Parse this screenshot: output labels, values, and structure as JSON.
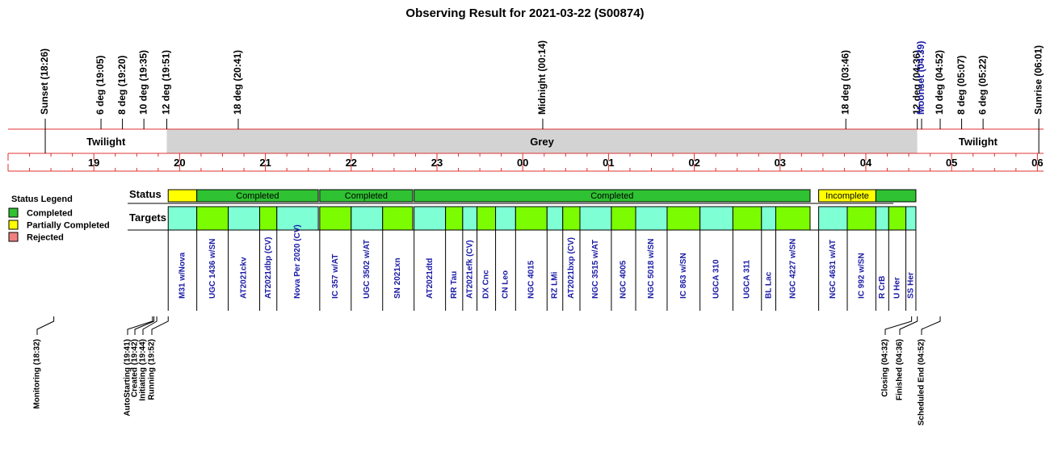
{
  "title": "Observing Result for 2021-03-22 (S00874)",
  "chart_data": {
    "type": "timeline",
    "time_axis": {
      "start": "18:00",
      "end": "06:10",
      "hour_labels": [
        "19",
        "20",
        "21",
        "22",
        "23",
        "00",
        "01",
        "02",
        "03",
        "04",
        "05",
        "06"
      ]
    },
    "top_events": [
      {
        "label": "Sunset (18:26)",
        "time": "18:26",
        "color": "#000000"
      },
      {
        "label": "6 deg (19:05)",
        "time": "19:05",
        "color": "#000000"
      },
      {
        "label": "8 deg (19:20)",
        "time": "19:20",
        "color": "#000000"
      },
      {
        "label": "10 deg (19:35)",
        "time": "19:35",
        "color": "#000000"
      },
      {
        "label": "12 deg (19:51)",
        "time": "19:51",
        "color": "#000000"
      },
      {
        "label": "18 deg (20:41)",
        "time": "20:41",
        "color": "#000000"
      },
      {
        "label": "Midnight (00:14)",
        "time": "00:14",
        "color": "#000000"
      },
      {
        "label": "18 deg (03:46)",
        "time": "03:46",
        "color": "#000000"
      },
      {
        "label": "12 deg (04:36)",
        "time": "04:36",
        "color": "#000000"
      },
      {
        "label": "Moonset (04:39)",
        "time": "04:39",
        "color": "#1a1aa6"
      },
      {
        "label": "10 deg (04:52)",
        "time": "04:52",
        "color": "#000000"
      },
      {
        "label": "8 deg (05:07)",
        "time": "05:07",
        "color": "#000000"
      },
      {
        "label": "6 deg (05:22)",
        "time": "05:22",
        "color": "#000000"
      },
      {
        "label": "Sunrise (06:01)",
        "time": "06:01",
        "color": "#000000"
      }
    ],
    "sky_bands": [
      {
        "label": "Twilight",
        "start": "18:26",
        "end": "19:51",
        "color": "#ffffff"
      },
      {
        "label": "Grey",
        "start": "19:51",
        "end": "04:36",
        "color": "#d3d3d3"
      },
      {
        "label": "Twilight",
        "start": "04:36",
        "end": "06:01",
        "color": "#ffffff"
      }
    ],
    "status_legend": {
      "title": "Status Legend",
      "items": [
        {
          "label": "Completed",
          "color": "#2fc232"
        },
        {
          "label": "Partially Completed",
          "color": "#ffff00"
        },
        {
          "label": "Rejected",
          "color": "#f08080"
        }
      ]
    },
    "row_labels": {
      "status": "Status",
      "targets": "Targets"
    },
    "status_blocks": [
      {
        "label": "",
        "start": "19:52",
        "end": "20:12",
        "color": "#ffff00"
      },
      {
        "label": "Completed",
        "start": "20:12",
        "end": "21:37",
        "color": "#2fc232"
      },
      {
        "label": "Completed",
        "start": "21:38",
        "end": "22:43",
        "color": "#2fc232"
      },
      {
        "label": "Completed",
        "start": "22:44",
        "end": "03:21",
        "color": "#2fc232"
      },
      {
        "label": "Incomplete",
        "start": "03:27",
        "end": "04:07",
        "color": "#ffff00"
      },
      {
        "label": "",
        "start": "04:07",
        "end": "04:35",
        "color": "#2fc232"
      }
    ],
    "targets": [
      {
        "name": "M31 w/Nova",
        "start": "19:52",
        "end": "20:12",
        "color": "#7fffd4"
      },
      {
        "name": "UGC 1436 w/SN",
        "start": "20:12",
        "end": "20:34",
        "color": "#7cfc00"
      },
      {
        "name": "AT2021ckv",
        "start": "20:34",
        "end": "20:56",
        "color": "#7fffd4"
      },
      {
        "name": "AT2021dbp (CV)",
        "start": "20:56",
        "end": "21:08",
        "color": "#7cfc00"
      },
      {
        "name": "Nova Per 2020 (CV)",
        "start": "21:08",
        "end": "21:37",
        "color": "#7fffd4"
      },
      {
        "name": "IC 357 w/AT",
        "start": "21:38",
        "end": "22:00",
        "color": "#7cfc00"
      },
      {
        "name": "UGC 3502 w/AT",
        "start": "22:00",
        "end": "22:22",
        "color": "#7fffd4"
      },
      {
        "name": "SN 2021xn",
        "start": "22:22",
        "end": "22:43",
        "color": "#7cfc00"
      },
      {
        "name": "AT2021dtd",
        "start": "22:44",
        "end": "23:06",
        "color": "#7fffd4"
      },
      {
        "name": "RR Tau",
        "start": "23:06",
        "end": "23:18",
        "color": "#7cfc00"
      },
      {
        "name": "AT2021efk (CV)",
        "start": "23:18",
        "end": "23:28",
        "color": "#7fffd4"
      },
      {
        "name": "DX Cnc",
        "start": "23:28",
        "end": "23:41",
        "color": "#7cfc00"
      },
      {
        "name": "CN Leo",
        "start": "23:41",
        "end": "23:55",
        "color": "#7fffd4"
      },
      {
        "name": "NGC 4015",
        "start": "23:55",
        "end": "00:17",
        "color": "#7cfc00"
      },
      {
        "name": "RZ LMi",
        "start": "00:17",
        "end": "00:28",
        "color": "#7fffd4"
      },
      {
        "name": "AT2021bxp (CV)",
        "start": "00:28",
        "end": "00:40",
        "color": "#7cfc00"
      },
      {
        "name": "NGC 3515 w/AT",
        "start": "00:40",
        "end": "01:02",
        "color": "#7fffd4"
      },
      {
        "name": "NGC 4005",
        "start": "01:02",
        "end": "01:19",
        "color": "#7cfc00"
      },
      {
        "name": "NGC 5018 w/SN",
        "start": "01:19",
        "end": "01:41",
        "color": "#7fffd4"
      },
      {
        "name": "IC 863 w/SN",
        "start": "01:41",
        "end": "02:04",
        "color": "#7cfc00"
      },
      {
        "name": "UGCA 310",
        "start": "02:04",
        "end": "02:27",
        "color": "#7fffd4"
      },
      {
        "name": "UGCA 311",
        "start": "02:27",
        "end": "02:47",
        "color": "#7cfc00"
      },
      {
        "name": "BL Lac",
        "start": "02:47",
        "end": "02:57",
        "color": "#7fffd4"
      },
      {
        "name": "NGC 4227 w/SN",
        "start": "02:57",
        "end": "03:21",
        "color": "#7cfc00"
      },
      {
        "name": "NGC 4631 w/AT",
        "start": "03:27",
        "end": "03:47",
        "color": "#7fffd4"
      },
      {
        "name": "IC 992 w/SN",
        "start": "03:47",
        "end": "04:07",
        "color": "#7cfc00"
      },
      {
        "name": "R CrB",
        "start": "04:07",
        "end": "04:16",
        "color": "#7fffd4"
      },
      {
        "name": "U Her",
        "start": "04:16",
        "end": "04:28",
        "color": "#7cfc00"
      },
      {
        "name": "SS Her",
        "start": "04:28",
        "end": "04:35",
        "color": "#7fffd4"
      }
    ],
    "bottom_events": [
      {
        "label": "Monitoring (18:32)",
        "time": "18:32"
      },
      {
        "label": "AutoStarting (19:41)",
        "time": "19:41"
      },
      {
        "label": "Created (19:42)",
        "time": "19:42"
      },
      {
        "label": "Initiating (19:44)",
        "time": "19:44"
      },
      {
        "label": "Running (19:52)",
        "time": "19:52"
      },
      {
        "label": "Closing (04:32)",
        "time": "04:32"
      },
      {
        "label": "Finished (04:36)",
        "time": "04:36"
      },
      {
        "label": "Scheduled End (04:52)",
        "time": "04:52"
      }
    ]
  }
}
